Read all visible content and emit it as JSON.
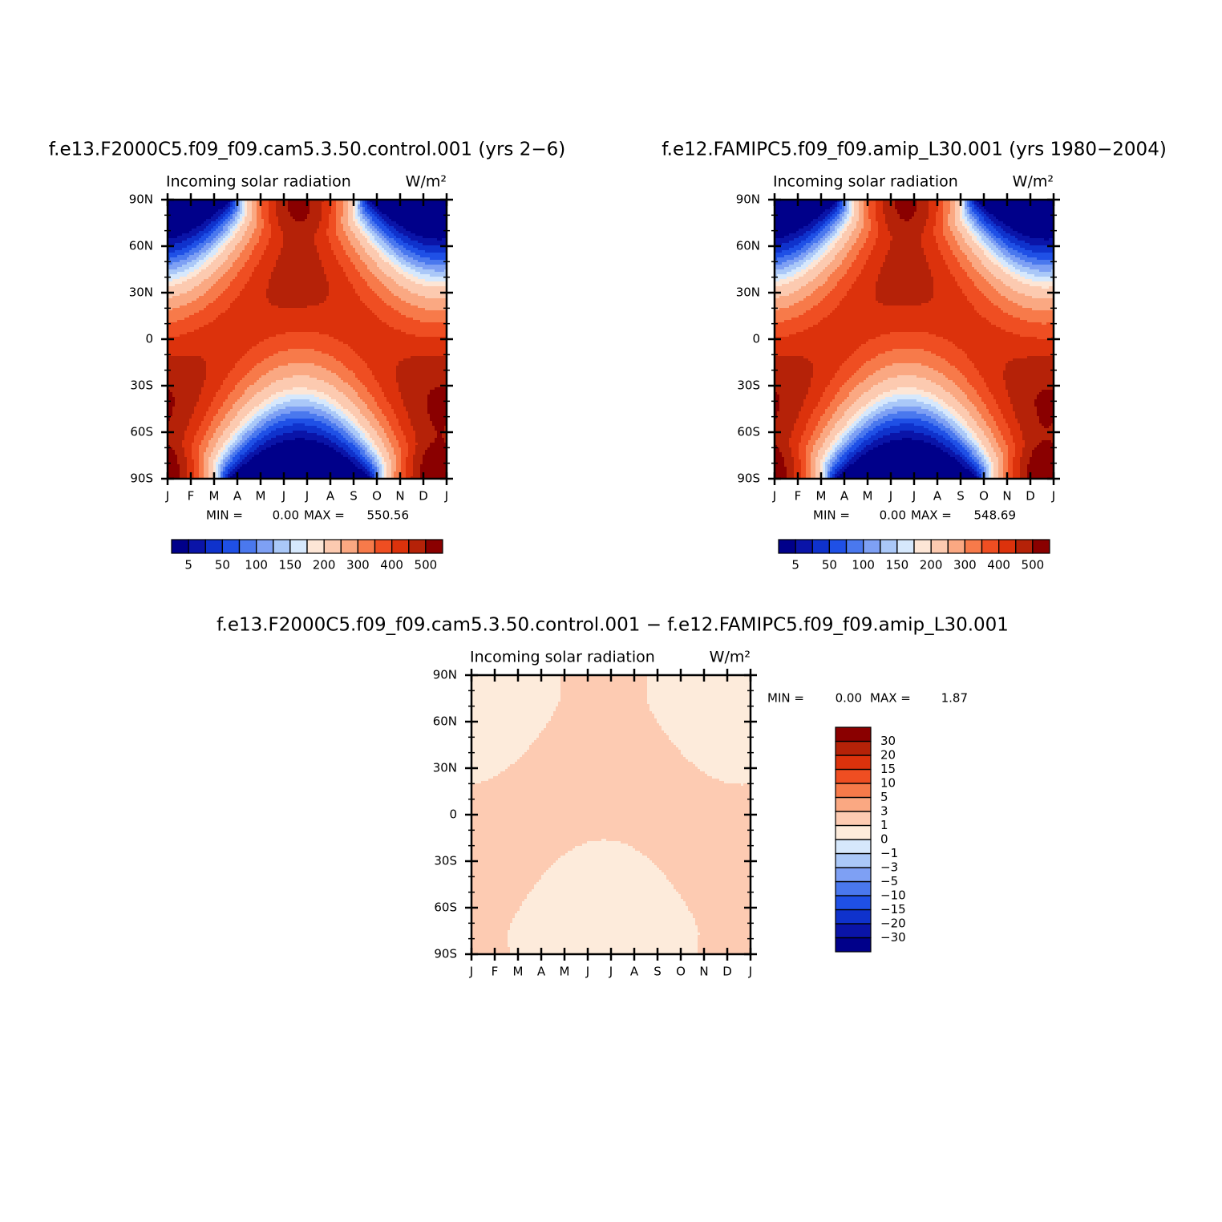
{
  "chart_data": [
    {
      "type": "contour",
      "run_title": "f.e13.F2000C5.f09_f09.cam5.3.50.control.001 (yrs 2−6)",
      "title": "Incoming solar radiation",
      "units": "W/m²",
      "x_categories": [
        "J",
        "F",
        "M",
        "A",
        "M",
        "J",
        "J",
        "A",
        "S",
        "O",
        "N",
        "D",
        "J"
      ],
      "ylim": [
        -90,
        90
      ],
      "yticks": [
        {
          "value": -90,
          "label": "90S"
        },
        {
          "value": -60,
          "label": "60S"
        },
        {
          "value": -30,
          "label": "30S"
        },
        0,
        {
          "value": 30,
          "label": "30N"
        },
        {
          "value": 60,
          "label": "60N"
        },
        {
          "value": 90,
          "label": "90N"
        }
      ],
      "yminorticks": [
        -80,
        -70,
        -50,
        -40,
        -20,
        -10,
        10,
        20,
        40,
        50,
        70,
        80
      ],
      "min_label": "MIN =",
      "min": {
        "value": 0,
        "label": "0.00"
      },
      "max_label": "MAX =",
      "max": {
        "value": 550.56,
        "label": "550.56"
      },
      "colorbar": {
        "orientation": "horizontal",
        "levels": [
          5,
          25,
          50,
          75,
          100,
          125,
          150,
          175,
          200,
          250,
          300,
          350,
          400,
          450,
          500
        ],
        "level_labels": [
          "5",
          null,
          "50",
          null,
          "100",
          null,
          "150",
          null,
          "200",
          null,
          "300",
          null,
          "400",
          null,
          "500"
        ],
        "colors": [
          "#00008a",
          "#0a14a8",
          "#0f32cc",
          "#1f50e6",
          "#4a78ee",
          "#7ea0f4",
          "#aac8f8",
          "#d6e8fc",
          "#fde6d6",
          "#fccab0",
          "#faa882",
          "#f77a4a",
          "#ef4e22",
          "#dc320c",
          "#b52208",
          "#8a0000"
        ]
      }
    },
    {
      "type": "contour",
      "run_title": "f.e12.FAMIPC5.f09_f09.amip_L30.001 (yrs 1980−2004)",
      "title": "Incoming solar radiation",
      "units": "W/m²",
      "x_categories": [
        "J",
        "F",
        "M",
        "A",
        "M",
        "J",
        "J",
        "A",
        "S",
        "O",
        "N",
        "D",
        "J"
      ],
      "ylim": [
        -90,
        90
      ],
      "yticks": [
        {
          "value": -90,
          "label": "90S"
        },
        {
          "value": -60,
          "label": "60S"
        },
        {
          "value": -30,
          "label": "30S"
        },
        0,
        {
          "value": 30,
          "label": "30N"
        },
        {
          "value": 60,
          "label": "60N"
        },
        {
          "value": 90,
          "label": "90N"
        }
      ],
      "yminorticks": [
        -80,
        -70,
        -50,
        -40,
        -20,
        -10,
        10,
        20,
        40,
        50,
        70,
        80
      ],
      "min_label": "MIN =",
      "min": {
        "value": 0,
        "label": "0.00"
      },
      "max_label": "MAX =",
      "max": {
        "value": 548.69,
        "label": "548.69"
      },
      "colorbar": {
        "orientation": "horizontal",
        "levels": [
          5,
          25,
          50,
          75,
          100,
          125,
          150,
          175,
          200,
          250,
          300,
          350,
          400,
          450,
          500
        ],
        "level_labels": [
          "5",
          null,
          "50",
          null,
          "100",
          null,
          "150",
          null,
          "200",
          null,
          "300",
          null,
          "400",
          null,
          "500"
        ],
        "colors": [
          "#00008a",
          "#0a14a8",
          "#0f32cc",
          "#1f50e6",
          "#4a78ee",
          "#7ea0f4",
          "#aac8f8",
          "#d6e8fc",
          "#fde6d6",
          "#fccab0",
          "#faa882",
          "#f77a4a",
          "#ef4e22",
          "#dc320c",
          "#b52208",
          "#8a0000"
        ]
      }
    },
    {
      "type": "contour",
      "run_title": "f.e13.F2000C5.f09_f09.cam5.3.50.control.001 − f.e12.FAMIPC5.f09_f09.amip_L30.001",
      "title": "Incoming solar radiation",
      "units": "W/m²",
      "x_categories": [
        "J",
        "F",
        "M",
        "A",
        "M",
        "J",
        "J",
        "A",
        "S",
        "O",
        "N",
        "D",
        "J"
      ],
      "ylim": [
        -90,
        90
      ],
      "yticks": [
        {
          "value": -90,
          "label": "90S"
        },
        {
          "value": -60,
          "label": "60S"
        },
        {
          "value": -30,
          "label": "30S"
        },
        0,
        {
          "value": 30,
          "label": "30N"
        },
        {
          "value": 60,
          "label": "60N"
        },
        {
          "value": 90,
          "label": "90N"
        }
      ],
      "yminorticks": [
        -80,
        -70,
        -50,
        -40,
        -20,
        -10,
        10,
        20,
        40,
        50,
        70,
        80
      ],
      "min_label": "MIN =",
      "min": {
        "value": 0,
        "label": "0.00"
      },
      "max_label": "MAX =",
      "max": {
        "value": 1.87,
        "label": "1.87"
      },
      "colorbar": {
        "orientation": "vertical",
        "levels": [
          -30,
          -20,
          -15,
          -10,
          -5,
          -3,
          -1,
          0,
          1,
          3,
          5,
          10,
          15,
          20,
          30
        ],
        "level_labels": [
          "−30",
          "−20",
          "−15",
          "−10",
          "−5",
          "−3",
          "−1",
          "0",
          "1",
          "3",
          "5",
          "10",
          "15",
          "20",
          "30"
        ],
        "colors": [
          "#00008a",
          "#0a14a8",
          "#0f32cc",
          "#1f50e6",
          "#4a78ee",
          "#7ea0f4",
          "#aac8f8",
          "#d6e8fc",
          "#fdebdb",
          "#fdcbb2",
          "#faa882",
          "#f77a4a",
          "#ef4e22",
          "#dc320c",
          "#b52208",
          "#8a0000"
        ]
      }
    }
  ]
}
